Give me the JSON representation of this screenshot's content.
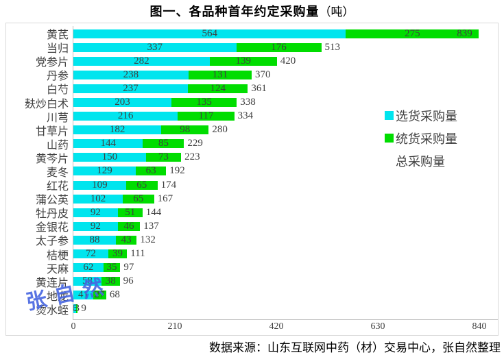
{
  "title": {
    "main": "图一、各品种首年约定采购量",
    "unit": "（吨）"
  },
  "legend": {
    "items": [
      {
        "label": "选货采购量",
        "color": "#00e5ee"
      },
      {
        "label": "统货采购量",
        "color": "#00dd00"
      },
      {
        "label": "总采购量",
        "color": null
      }
    ]
  },
  "watermark": "张自然",
  "source_note": "数据来源：山东互联网中药（材）交易中心，张自然整理",
  "colors": {
    "selected_goods": "#00e5ee",
    "bulk_goods": "#00dd00",
    "label_text": "#3f3f3f",
    "axis_line": "#bfbfbf",
    "border": "#d9d9d9",
    "watermark_blue": "#4766e0"
  },
  "chart_data": {
    "type": "bar",
    "orientation": "horizontal",
    "stacked": true,
    "title": "图一、各品种首年约定采购量（吨）",
    "xlabel": "",
    "ylabel": "",
    "xlim": [
      0,
      840
    ],
    "xticks": [
      0,
      210,
      420,
      630,
      840
    ],
    "grid": false,
    "legend_position": "right",
    "categories": [
      "黄芪",
      "当归",
      "党参片",
      "丹参",
      "白芍",
      "麸炒白术",
      "川芎",
      "甘草片",
      "山药",
      "黄芩片",
      "麦冬",
      "红花",
      "蒲公英",
      "牡丹皮",
      "金银花",
      "太子参",
      "桔梗",
      "天麻",
      "黄连片",
      "地龙",
      "烫水蛭"
    ],
    "series": [
      {
        "name": "选货采购量",
        "color": "#00e5ee",
        "values": [
          564,
          337,
          282,
          238,
          237,
          203,
          216,
          182,
          144,
          150,
          129,
          109,
          102,
          92,
          92,
          88,
          72,
          62,
          58,
          41,
          6
        ]
      },
      {
        "name": "统货采购量",
        "color": "#00dd00",
        "values": [
          275,
          176,
          139,
          131,
          124,
          135,
          117,
          98,
          85,
          73,
          63,
          65,
          65,
          51,
          46,
          43,
          39,
          35,
          38,
          27,
          3
        ]
      }
    ],
    "totals": [
      839,
      513,
      420,
      370,
      361,
      338,
      334,
      280,
      229,
      223,
      192,
      174,
      167,
      144,
      137,
      132,
      111,
      97,
      96,
      68,
      9
    ]
  }
}
